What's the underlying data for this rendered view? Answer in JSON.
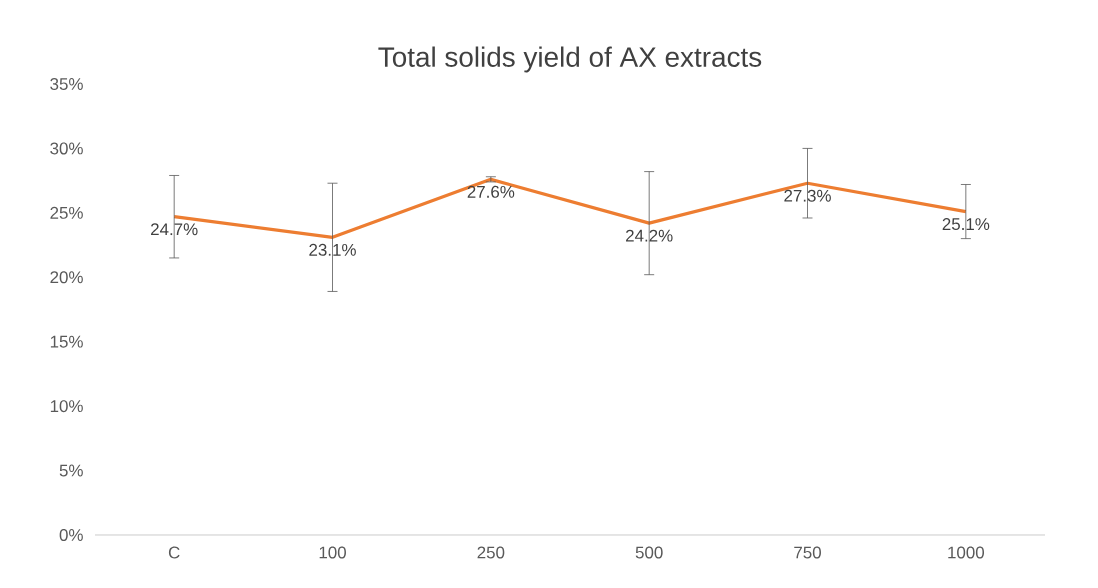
{
  "chart_data": {
    "type": "line",
    "title": "Total solids yield of AX extracts",
    "categories": [
      "C",
      "100",
      "250",
      "500",
      "750",
      "1000"
    ],
    "values": [
      24.7,
      23.1,
      27.6,
      24.2,
      27.3,
      25.1
    ],
    "errors": [
      3.2,
      4.2,
      0.2,
      4.0,
      2.7,
      2.1
    ],
    "value_labels": [
      "24.7%",
      "23.1%",
      "27.6%",
      "24.2%",
      "27.3%",
      "25.1%"
    ],
    "color": "#ed7d31",
    "marker": "none",
    "line_style": "solid",
    "ylim": [
      0,
      35
    ],
    "yticks": [
      {
        "value": 0,
        "label": "0%"
      },
      {
        "value": 5,
        "label": "5%"
      },
      {
        "value": 10,
        "label": "10%"
      },
      {
        "value": 15,
        "label": "15%"
      },
      {
        "value": 20,
        "label": "20%"
      },
      {
        "value": 25,
        "label": "25%"
      },
      {
        "value": 30,
        "label": "30%"
      },
      {
        "value": 35,
        "label": "35%"
      }
    ],
    "grid": false
  }
}
